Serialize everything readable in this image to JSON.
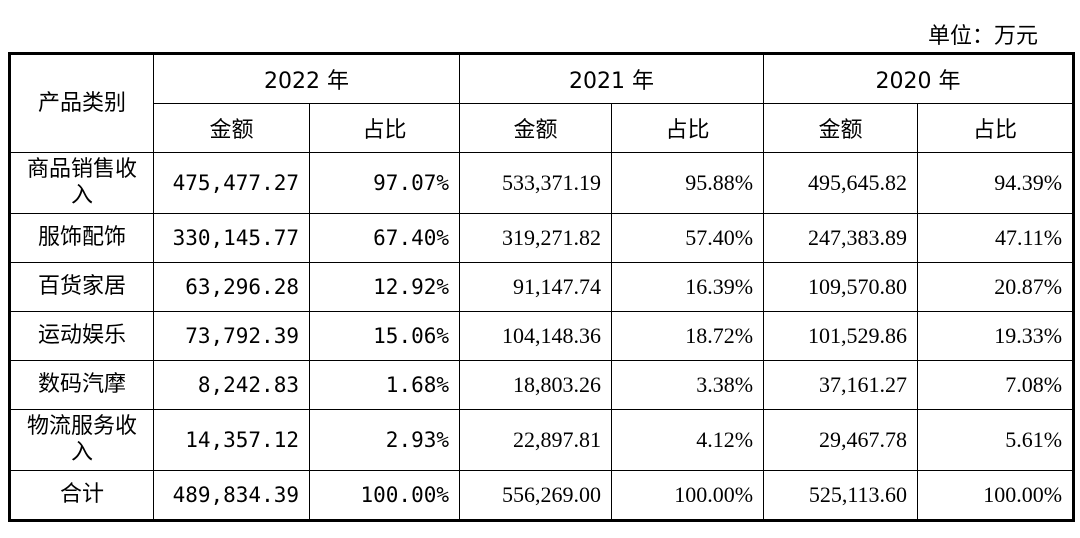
{
  "unit_label": "单位：万元",
  "header": {
    "category": "产品类别",
    "years": [
      "2022 年",
      "2021 年",
      "2020 年"
    ],
    "amount": "金额",
    "ratio": "占比"
  },
  "rows": [
    {
      "category": "商品销售收入",
      "y2022_amount": "475,477.27",
      "y2022_ratio": "97.07%",
      "y2021_amount": "533,371.19",
      "y2021_ratio": "95.88%",
      "y2020_amount": "495,645.82",
      "y2020_ratio": "94.39%"
    },
    {
      "category": "服饰配饰",
      "y2022_amount": "330,145.77",
      "y2022_ratio": "67.40%",
      "y2021_amount": "319,271.82",
      "y2021_ratio": "57.40%",
      "y2020_amount": "247,383.89",
      "y2020_ratio": "47.11%"
    },
    {
      "category": "百货家居",
      "y2022_amount": "63,296.28",
      "y2022_ratio": "12.92%",
      "y2021_amount": "91,147.74",
      "y2021_ratio": "16.39%",
      "y2020_amount": "109,570.80",
      "y2020_ratio": "20.87%"
    },
    {
      "category": "运动娱乐",
      "y2022_amount": "73,792.39",
      "y2022_ratio": "15.06%",
      "y2021_amount": "104,148.36",
      "y2021_ratio": "18.72%",
      "y2020_amount": "101,529.86",
      "y2020_ratio": "19.33%"
    },
    {
      "category": "数码汽摩",
      "y2022_amount": "8,242.83",
      "y2022_ratio": "1.68%",
      "y2021_amount": "18,803.26",
      "y2021_ratio": "3.38%",
      "y2020_amount": "37,161.27",
      "y2020_ratio": "7.08%"
    },
    {
      "category": "物流服务收入",
      "y2022_amount": "14,357.12",
      "y2022_ratio": "2.93%",
      "y2021_amount": "22,897.81",
      "y2021_ratio": "4.12%",
      "y2020_amount": "29,467.78",
      "y2020_ratio": "5.61%"
    },
    {
      "category": "合计",
      "y2022_amount": "489,834.39",
      "y2022_ratio": "100.00%",
      "y2021_amount": "556,269.00",
      "y2021_ratio": "100.00%",
      "y2020_amount": "525,113.60",
      "y2020_ratio": "100.00%"
    }
  ]
}
